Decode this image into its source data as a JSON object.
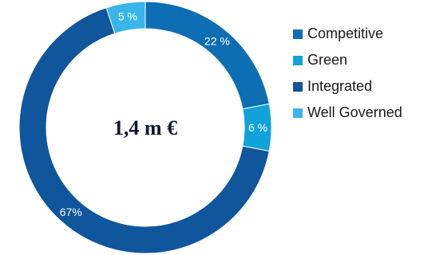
{
  "chart_data": {
    "type": "pie",
    "donut": true,
    "center_text": "1,4 m €",
    "slices": [
      {
        "name": "Competitive",
        "value": 22,
        "label": "22 %",
        "color": "#0d6eb4"
      },
      {
        "name": "Green",
        "value": 6,
        "label": "6 %",
        "color": "#11a2db"
      },
      {
        "name": "Integrated",
        "value": 67,
        "label": "67%",
        "color": "#0f569d"
      },
      {
        "name": "Well Governed",
        "value": 5,
        "label": "5 %",
        "color": "#39b5ec"
      }
    ],
    "legend_position": "right"
  }
}
